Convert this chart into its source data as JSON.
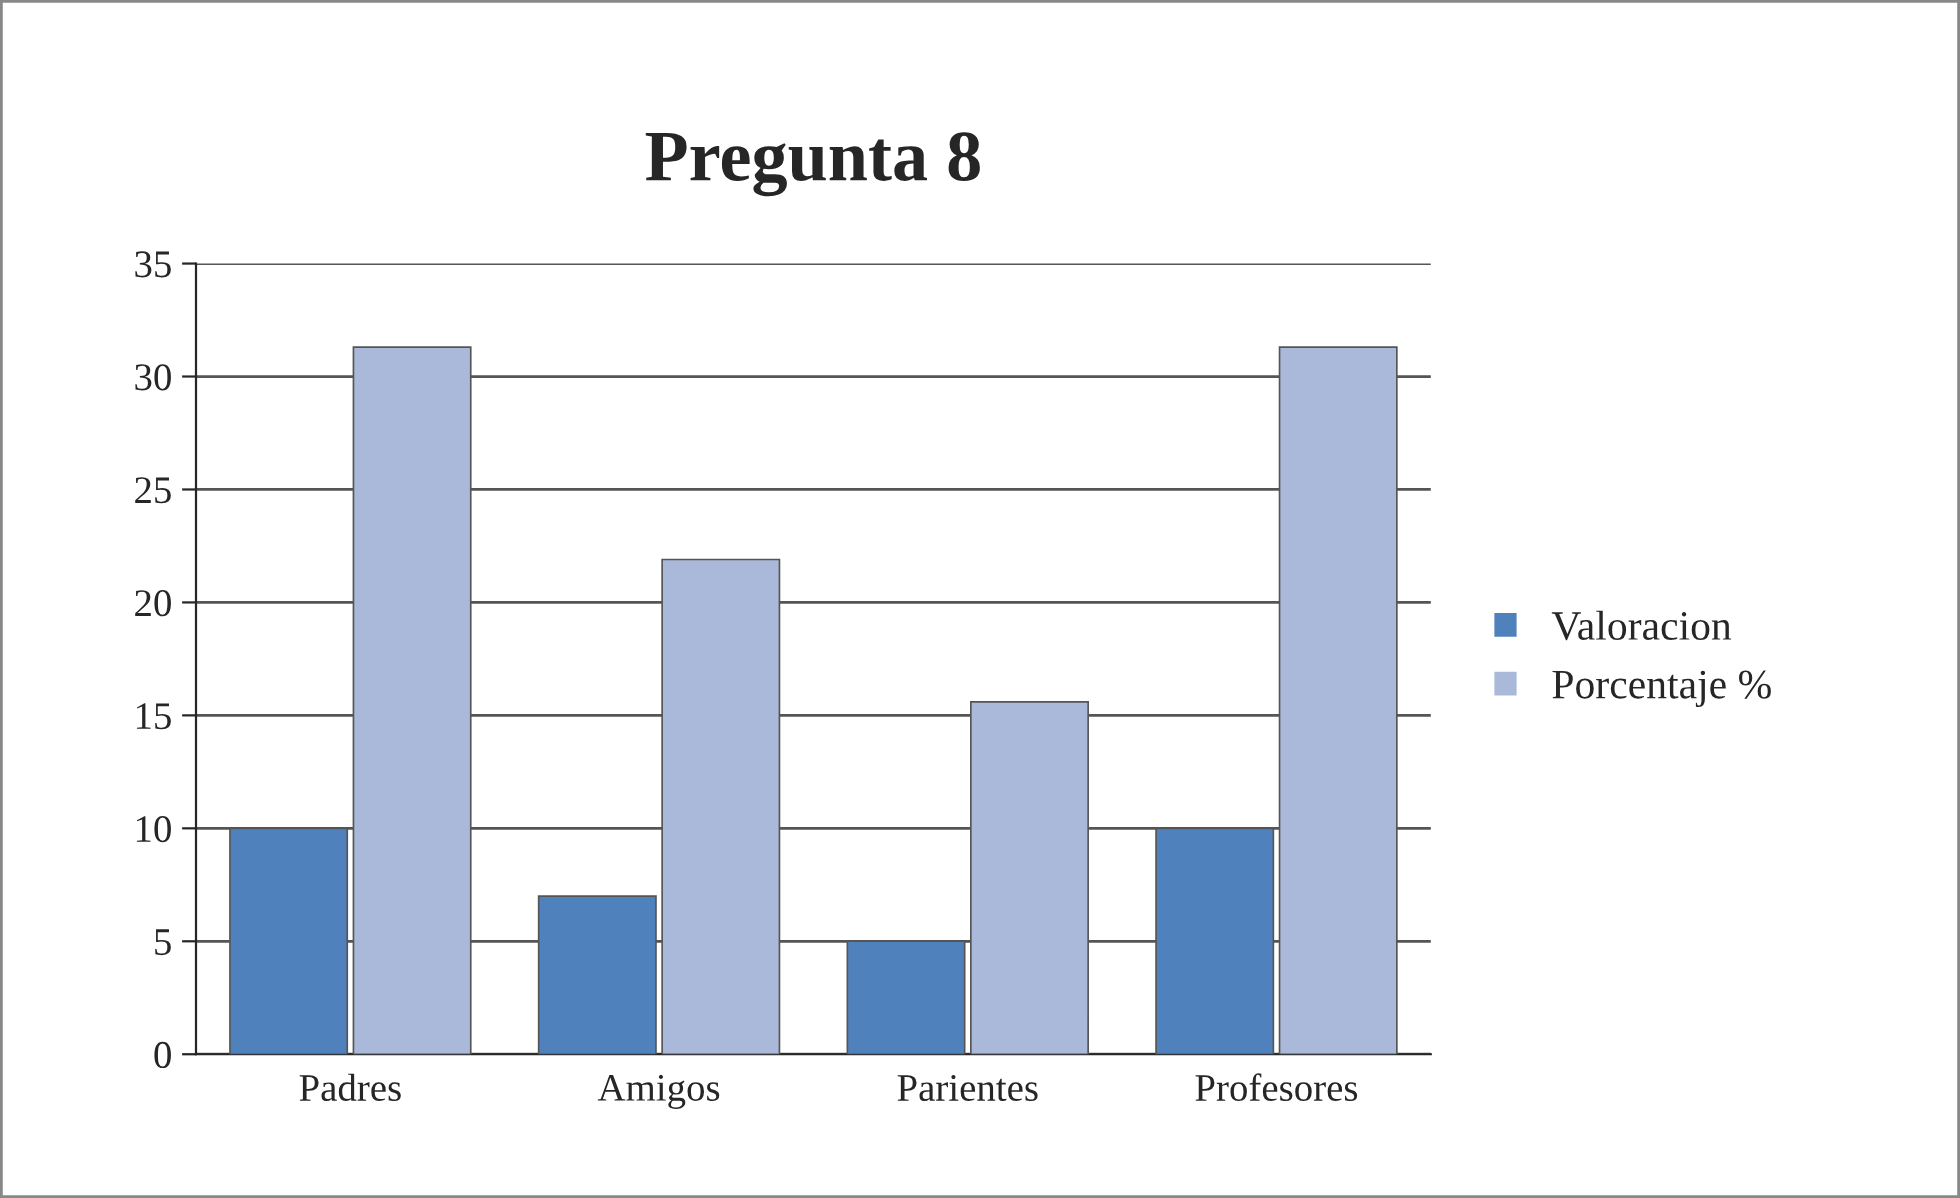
{
  "chart_data": {
    "type": "bar",
    "title": "Pregunta 8",
    "categories": [
      "Padres",
      "Amigos",
      "Parientes",
      "Profesores"
    ],
    "series": [
      {
        "name": "Valoracion",
        "color": "#4f81bd",
        "values": [
          10,
          7,
          5,
          10
        ]
      },
      {
        "name": "Porcentaje %",
        "color": "#aab9d9",
        "values": [
          31.3,
          21.9,
          15.6,
          31.3
        ]
      }
    ],
    "ylim": [
      0,
      35
    ],
    "yticks": [
      0,
      5,
      10,
      15,
      20,
      25,
      30,
      35
    ],
    "grid": "y",
    "legend": "right"
  }
}
